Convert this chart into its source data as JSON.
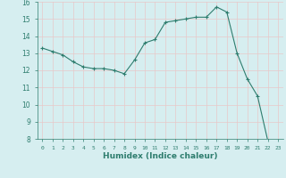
{
  "x": [
    0,
    1,
    2,
    3,
    4,
    5,
    6,
    7,
    8,
    9,
    10,
    11,
    12,
    13,
    14,
    15,
    16,
    17,
    18,
    19,
    20,
    21,
    22,
    23
  ],
  "y": [
    13.3,
    13.1,
    12.9,
    12.5,
    12.2,
    12.1,
    12.1,
    12.0,
    11.8,
    12.6,
    13.6,
    13.8,
    14.8,
    14.9,
    15.0,
    15.1,
    15.1,
    15.7,
    15.4,
    13.0,
    11.5,
    10.5,
    7.9,
    7.8
  ],
  "line_color": "#2e7d6e",
  "marker": "+",
  "bg_color": "#d6eef0",
  "grid_color": "#e8c8c8",
  "xlabel": "Humidex (Indice chaleur)",
  "xlabel_color": "#2e7d6e",
  "tick_color": "#2e7d6e",
  "ylim": [
    8,
    16
  ],
  "yticks": [
    8,
    9,
    10,
    11,
    12,
    13,
    14,
    15,
    16
  ],
  "xticks": [
    0,
    1,
    2,
    3,
    4,
    5,
    6,
    7,
    8,
    9,
    10,
    11,
    12,
    13,
    14,
    15,
    16,
    17,
    18,
    19,
    20,
    21,
    22,
    23
  ],
  "title": ""
}
